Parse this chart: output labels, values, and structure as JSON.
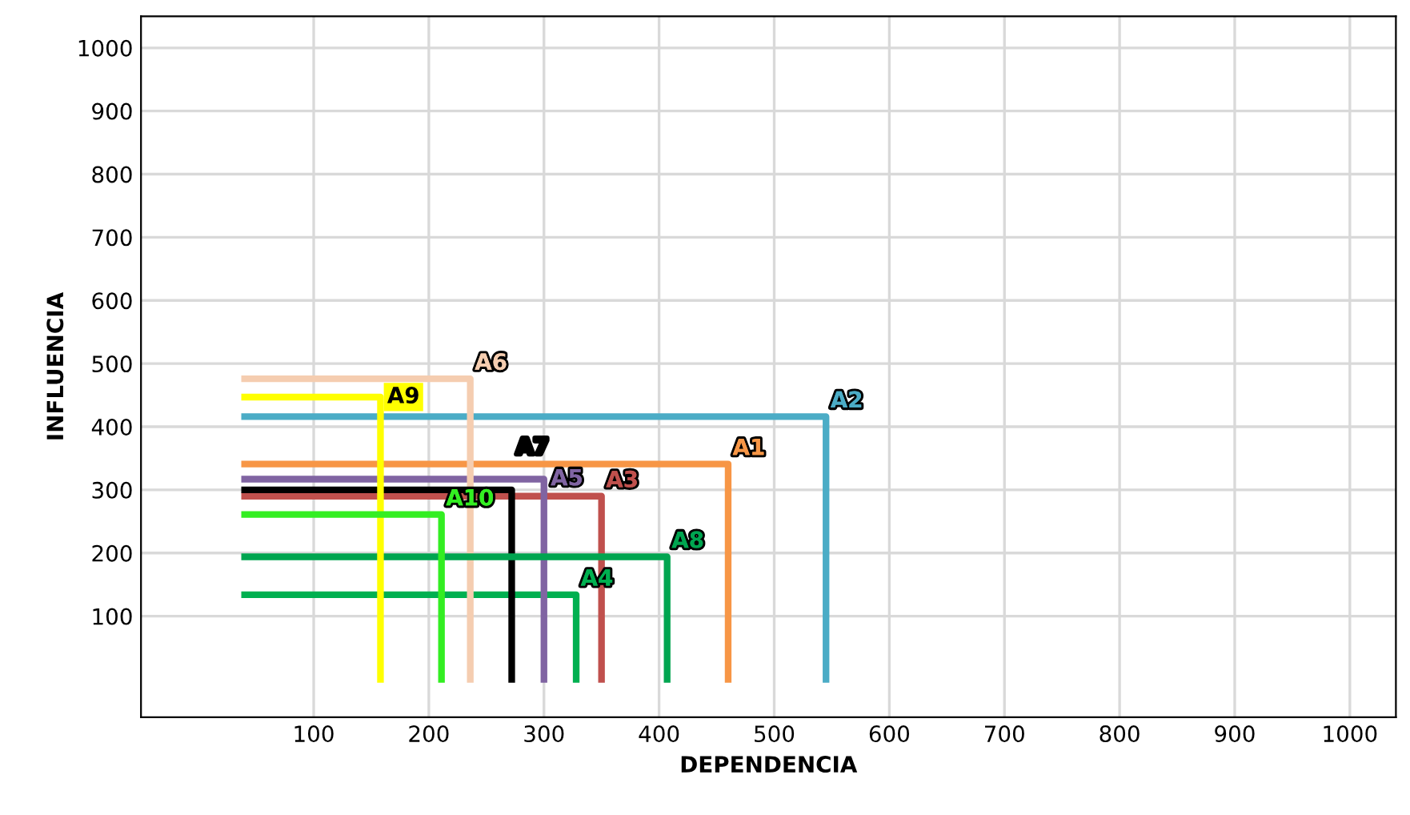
{
  "chart_data": {
    "type": "line",
    "xlabel": "DEPENDENCIA",
    "ylabel": "INFLUENCIA",
    "xlim": [
      -50,
      1040
    ],
    "ylim": [
      -60,
      1050
    ],
    "xticks": [
      100,
      200,
      300,
      400,
      500,
      600,
      700,
      800,
      900,
      1000
    ],
    "yticks": [
      100,
      200,
      300,
      400,
      500,
      600,
      700,
      800,
      900,
      1000
    ],
    "grid": true,
    "legend": false,
    "marker": "none",
    "line_style": "solid",
    "series": [
      {
        "name": "A1",
        "color": "#f79646",
        "x": [
          40,
          460,
          460
        ],
        "values": [
          341,
          341,
          0
        ]
      },
      {
        "name": "A2",
        "color": "#4bacc6",
        "x": [
          40,
          545,
          545
        ],
        "values": [
          416,
          416,
          0
        ]
      },
      {
        "name": "A3",
        "color": "#c0504d",
        "x": [
          40,
          350,
          350
        ],
        "values": [
          290,
          290,
          0
        ]
      },
      {
        "name": "A4",
        "color": "#00b050",
        "x": [
          40,
          328,
          328
        ],
        "values": [
          134,
          134,
          0
        ]
      },
      {
        "name": "A5",
        "color": "#8064a2",
        "x": [
          40,
          300,
          300
        ],
        "values": [
          317,
          317,
          0
        ]
      },
      {
        "name": "A6",
        "color": "#f5cdb0",
        "x": [
          40,
          236,
          236
        ],
        "values": [
          476,
          476,
          0
        ]
      },
      {
        "name": "A7",
        "color": "#000000",
        "x": [
          40,
          272,
          272
        ],
        "values": [
          300,
          300,
          0
        ]
      },
      {
        "name": "A8",
        "color": "#00a550",
        "x": [
          40,
          407,
          407
        ],
        "values": [
          194,
          194,
          0
        ]
      },
      {
        "name": "A9",
        "color": "#ffff00",
        "x": [
          40,
          158,
          158
        ],
        "values": [
          447,
          447,
          0
        ]
      },
      {
        "name": "A10",
        "color": "#33ee22",
        "x": [
          40,
          211,
          211
        ],
        "values": [
          261,
          261,
          0
        ]
      }
    ]
  }
}
